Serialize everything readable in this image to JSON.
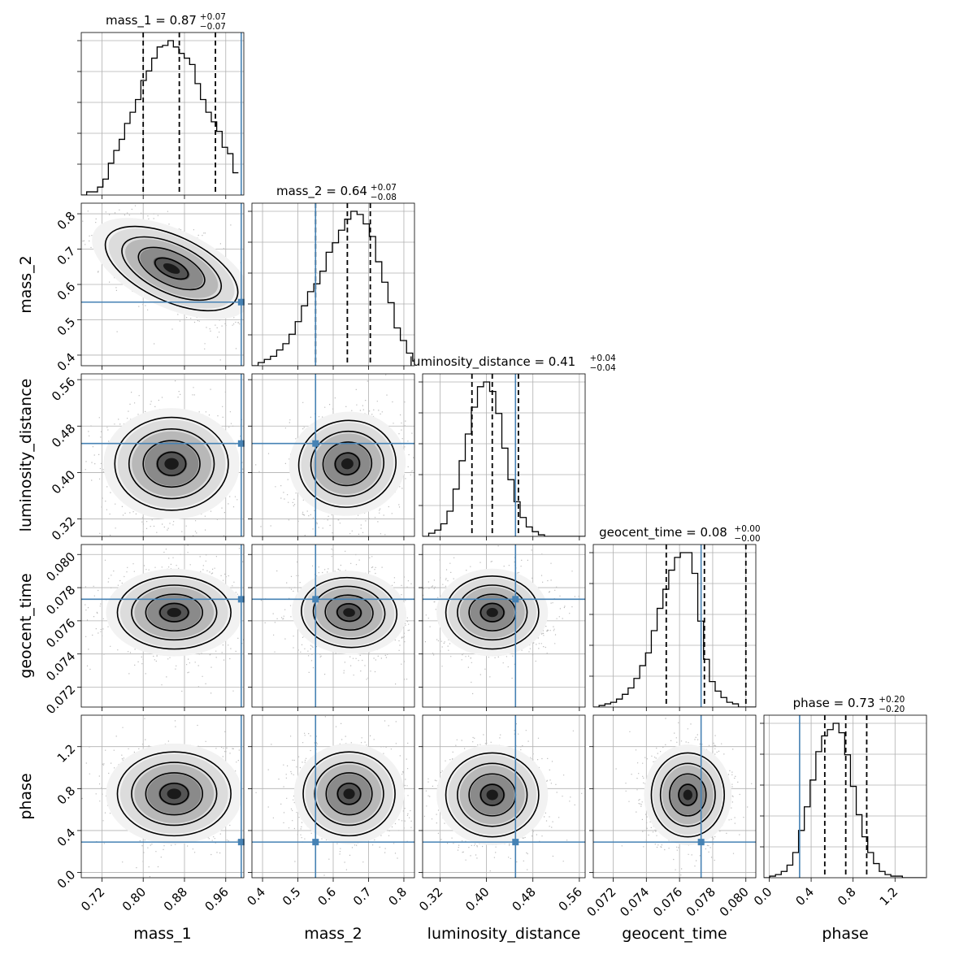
{
  "chart_data": {
    "type": "corner",
    "parameters": [
      {
        "name": "mass_1",
        "range": [
          0.68,
          0.995
        ],
        "ticks": [
          0.72,
          0.8,
          0.88,
          0.96
        ],
        "tick_labels": [
          "0.72",
          "0.80",
          "0.88",
          "0.96"
        ],
        "median": 0.87,
        "plus": 0.07,
        "minus": 0.07,
        "q_low": 0.8,
        "q_high": 0.94,
        "injection": 0.99,
        "title_main": "mass_1 = 0.87",
        "title_sup": "+0.07",
        "title_sub": "−0.07",
        "hist_left": 0.68,
        "hist_width": 0.0105,
        "hist": [
          0,
          0.02,
          0.02,
          0.05,
          0.1,
          0.2,
          0.28,
          0.35,
          0.45,
          0.52,
          0.6,
          0.72,
          0.78,
          0.86,
          0.93,
          0.94,
          0.97,
          0.93,
          0.89,
          0.86,
          0.82,
          0.7,
          0.6,
          0.52,
          0.46,
          0.4,
          0.3,
          0.26,
          0.14
        ]
      },
      {
        "name": "mass_2",
        "range": [
          0.37,
          0.83
        ],
        "ticks": [
          0.4,
          0.5,
          0.6,
          0.7,
          0.8
        ],
        "tick_labels": [
          "0.4",
          "0.5",
          "0.6",
          "0.7",
          "0.8"
        ],
        "median": 0.64,
        "plus": 0.07,
        "minus": 0.08,
        "q_low": 0.55,
        "q_high": 0.705,
        "injection": 0.55,
        "title_main": "mass_2 = 0.64",
        "title_sup": "+0.07",
        "title_sub": "−0.08",
        "hist_left": 0.37,
        "hist_width": 0.0175,
        "hist": [
          0,
          0.02,
          0.04,
          0.06,
          0.1,
          0.14,
          0.2,
          0.28,
          0.38,
          0.47,
          0.52,
          0.6,
          0.72,
          0.78,
          0.86,
          0.93,
          0.98,
          0.96,
          0.9,
          0.82,
          0.66,
          0.53,
          0.4,
          0.24,
          0.16,
          0.08,
          0.03
        ]
      },
      {
        "name": "luminosity_distance",
        "range": [
          0.29,
          0.57
        ],
        "ticks": [
          0.32,
          0.4,
          0.48,
          0.56
        ],
        "tick_labels": [
          "0.32",
          "0.40",
          "0.48",
          "0.56"
        ],
        "median": 0.41,
        "plus": 0.04,
        "minus": 0.04,
        "q_low": 0.375,
        "q_high": 0.455,
        "injection": 0.45,
        "title_main": "luminosity_distance = 0.41",
        "title_sup": "+0.04",
        "title_sub": "−0.04",
        "hist_left": 0.29,
        "hist_width": 0.0105,
        "hist": [
          0,
          0.02,
          0.04,
          0.08,
          0.16,
          0.3,
          0.48,
          0.65,
          0.82,
          0.95,
          0.98,
          0.92,
          0.78,
          0.56,
          0.36,
          0.22,
          0.12,
          0.06,
          0.03,
          0.01,
          0.0,
          0.0,
          0.0,
          0.0,
          0.0,
          0.0,
          0.0
        ]
      },
      {
        "name": "geocent_time",
        "range": [
          0.0708,
          0.0806
        ],
        "ticks": [
          0.072,
          0.074,
          0.076,
          0.078,
          0.08
        ],
        "tick_labels": [
          "0.072",
          "0.074",
          "0.076",
          "0.078",
          "0.080"
        ],
        "median": 0.08,
        "plus": 0.0,
        "minus": 0.0,
        "q_low": 0.0752,
        "q_high": 0.0775,
        "injection": 0.0773,
        "title_main": "geocent_time = 0.08",
        "title_sup": "+0.00",
        "title_sub": "−0.00",
        "hist_left": 0.0708,
        "hist_width": 0.00035,
        "hist": [
          0,
          0.01,
          0.02,
          0.03,
          0.05,
          0.08,
          0.12,
          0.18,
          0.26,
          0.34,
          0.48,
          0.62,
          0.74,
          0.86,
          0.94,
          0.97,
          0.97,
          0.84,
          0.54,
          0.3,
          0.16,
          0.1,
          0.06,
          0.03,
          0.02,
          0.0,
          0.0,
          0.0
        ]
      },
      {
        "name": "phase",
        "range": [
          -0.05,
          1.5
        ],
        "ticks": [
          0.0,
          0.4,
          0.8,
          1.2
        ],
        "tick_labels": [
          "0.0",
          "0.4",
          "0.8",
          "1.2"
        ],
        "median": 0.73,
        "plus": 0.2,
        "minus": 0.2,
        "q_low": 0.53,
        "q_high": 0.93,
        "injection": 0.29,
        "title_main": "phase = 0.73",
        "title_sup": "+0.20",
        "title_sub": "−0.20",
        "hist_left": -0.05,
        "hist_width": 0.055,
        "hist": [
          0,
          0.01,
          0.02,
          0.04,
          0.08,
          0.16,
          0.3,
          0.45,
          0.62,
          0.8,
          0.9,
          0.94,
          0.98,
          0.92,
          0.78,
          0.58,
          0.4,
          0.26,
          0.16,
          0.09,
          0.04,
          0.02,
          0.01,
          0.01,
          0.0,
          0.0,
          0.0,
          0.0
        ]
      }
    ],
    "pairs": [
      {
        "x": 0,
        "y": 1,
        "center": [
          0.855,
          0.645
        ],
        "sx": 0.055,
        "sy": 0.065,
        "rho": -0.65
      },
      {
        "x": 0,
        "y": 2,
        "center": [
          0.855,
          0.415
        ],
        "sx": 0.055,
        "sy": 0.04,
        "rho": 0.0
      },
      {
        "x": 0,
        "y": 3,
        "center": [
          0.86,
          0.0765
        ],
        "sx": 0.055,
        "sy": 0.0011,
        "rho": 0.0
      },
      {
        "x": 0,
        "y": 4,
        "center": [
          0.86,
          0.75
        ],
        "sx": 0.055,
        "sy": 0.2,
        "rho": 0.0
      },
      {
        "x": 1,
        "y": 2,
        "center": [
          0.64,
          0.415
        ],
        "sx": 0.065,
        "sy": 0.04,
        "rho": 0.15
      },
      {
        "x": 1,
        "y": 3,
        "center": [
          0.645,
          0.0765
        ],
        "sx": 0.065,
        "sy": 0.0011,
        "rho": -0.1
      },
      {
        "x": 1,
        "y": 4,
        "center": [
          0.645,
          0.75
        ],
        "sx": 0.065,
        "sy": 0.2,
        "rho": 0.0
      },
      {
        "x": 2,
        "y": 3,
        "center": [
          0.41,
          0.0765
        ],
        "sx": 0.04,
        "sy": 0.0011,
        "rho": 0.0
      },
      {
        "x": 2,
        "y": 4,
        "center": [
          0.41,
          0.74
        ],
        "sx": 0.04,
        "sy": 0.2,
        "rho": 0.0
      },
      {
        "x": 3,
        "y": 4,
        "center": [
          0.0765,
          0.74
        ],
        "sx": 0.0011,
        "sy": 0.2,
        "rho": 0.0
      }
    ],
    "grid": true
  },
  "colors": {
    "truth": "#4682b4",
    "contour": "#000000",
    "grid": "#b0b0b0"
  }
}
